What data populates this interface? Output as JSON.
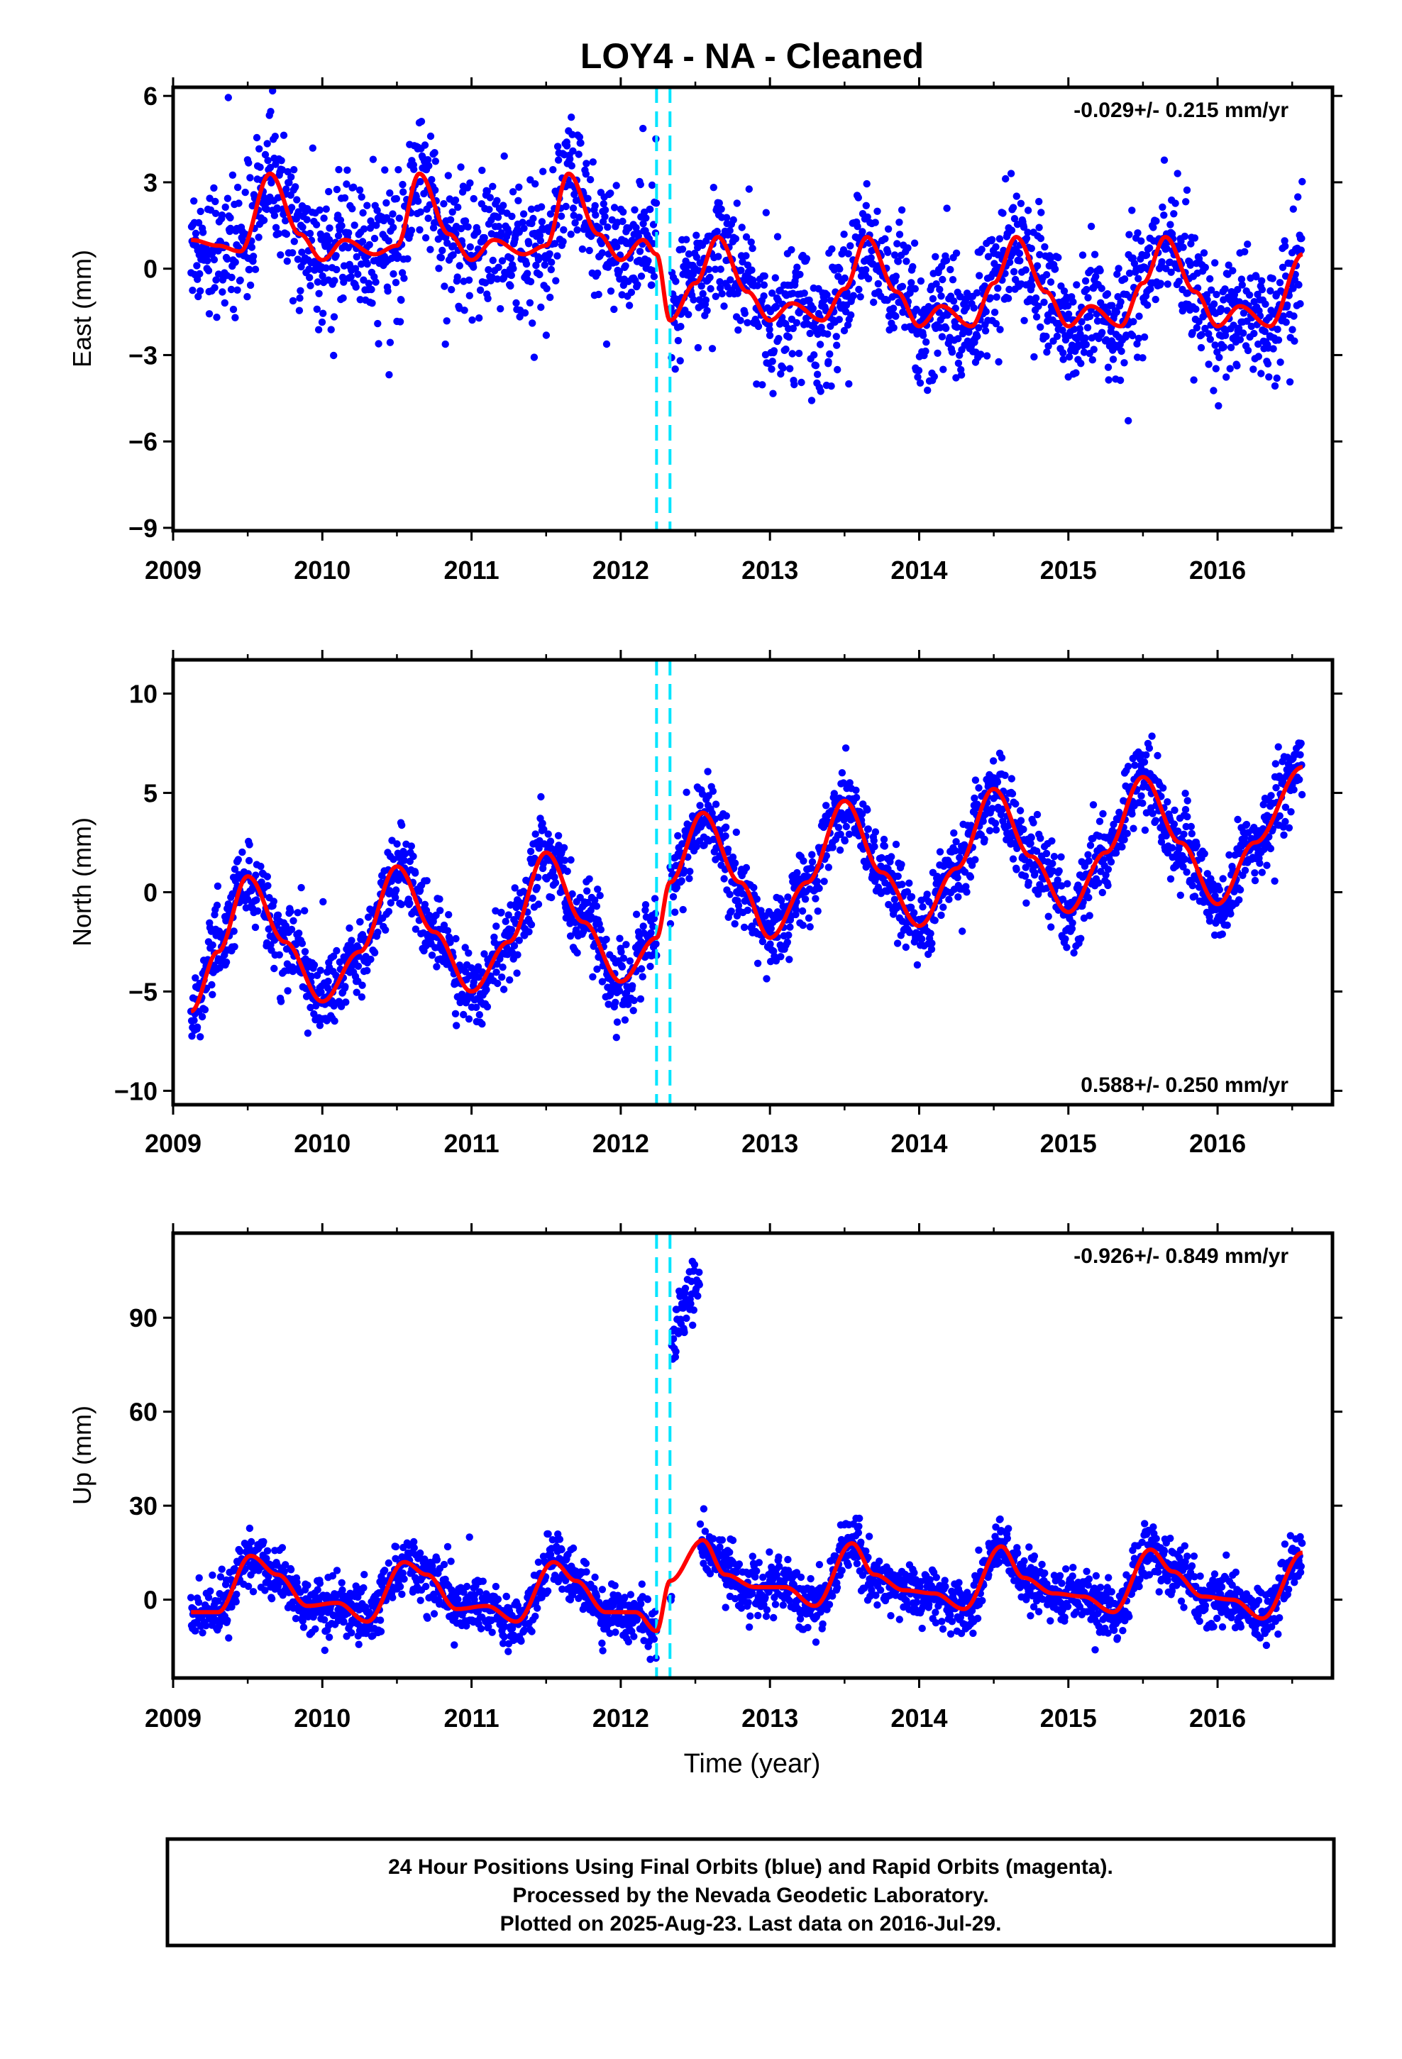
{
  "title": "LOY4  - NA - Cleaned",
  "xlabel": "Time (year)",
  "footer": {
    "line1": "24 Hour Positions Using Final Orbits (blue) and Rapid Orbits (magenta).",
    "line2": "Processed by the Nevada Geodetic Laboratory.",
    "line3": "Plotted on 2025-Aug-23. Last data on 2016-Jul-29."
  },
  "colors": {
    "points": "#0000ff",
    "model": "#ff0000",
    "offsets": "#00e5ff",
    "frame": "#000000"
  },
  "chart_data": [
    {
      "type": "scatter",
      "ylabel": "East (mm)",
      "rate_label": "-0.029+/- 0.215 mm/yr",
      "rate_position": "top-right",
      "xlim": [
        2009.0,
        2016.77
      ],
      "ylim": [
        -9.1,
        6.3
      ],
      "xticks": [
        2009,
        2010,
        2011,
        2012,
        2013,
        2014,
        2015,
        2016
      ],
      "yticks": [
        -9,
        -6,
        -3,
        0,
        3,
        6
      ],
      "ytick_labels": [
        "−9",
        "−6",
        "−3",
        "0",
        "3",
        "6"
      ],
      "offsets": [
        2012.24,
        2012.33
      ],
      "data_range": [
        2009.12,
        2016.57
      ],
      "series": [
        {
          "kind": "points",
          "mean_by_year": [
            [
              2009.12,
              0.5
            ],
            [
              2009.6,
              2.0
            ],
            [
              2010.0,
              0.6
            ],
            [
              2010.6,
              2.0
            ],
            [
              2011.0,
              0.8
            ],
            [
              2011.6,
              2.2
            ],
            [
              2012.0,
              0.8
            ],
            [
              2012.3,
              -0.3
            ],
            [
              2012.6,
              0.0
            ],
            [
              2013.0,
              -1.2
            ],
            [
              2013.6,
              0.0
            ],
            [
              2014.0,
              -1.5
            ],
            [
              2014.6,
              0.0
            ],
            [
              2015.0,
              -1.6
            ],
            [
              2015.6,
              0.2
            ],
            [
              2016.0,
              -1.8
            ],
            [
              2016.57,
              -0.8
            ]
          ],
          "scatter_std": 1.1
        },
        {
          "kind": "model",
          "x": [
            2009.12,
            2009.3,
            2009.45,
            2009.65,
            2009.85,
            2010.0,
            2010.15,
            2010.35,
            2010.5,
            2010.65,
            2010.85,
            2011.0,
            2011.15,
            2011.35,
            2011.5,
            2011.65,
            2011.85,
            2012.0,
            2012.15,
            2012.24,
            2012.33,
            2012.5,
            2012.65,
            2012.85,
            2013.0,
            2013.15,
            2013.35,
            2013.5,
            2013.65,
            2013.85,
            2014.0,
            2014.15,
            2014.35,
            2014.5,
            2014.65,
            2014.85,
            2015.0,
            2015.15,
            2015.35,
            2015.5,
            2015.65,
            2015.85,
            2016.0,
            2016.15,
            2016.35,
            2016.57
          ],
          "y": [
            1.0,
            0.8,
            0.6,
            3.3,
            1.2,
            0.3,
            1.0,
            0.5,
            0.8,
            3.3,
            1.2,
            0.3,
            1.0,
            0.5,
            0.8,
            3.3,
            1.2,
            0.3,
            1.0,
            0.5,
            -1.8,
            -0.5,
            1.1,
            -0.8,
            -1.8,
            -1.2,
            -1.8,
            -0.7,
            1.1,
            -0.8,
            -2.0,
            -1.3,
            -2.0,
            -0.5,
            1.1,
            -0.8,
            -2.0,
            -1.3,
            -2.0,
            -0.5,
            1.1,
            -0.8,
            -2.0,
            -1.3,
            -2.0,
            0.5
          ]
        }
      ]
    },
    {
      "type": "scatter",
      "ylabel": "North (mm)",
      "rate_label": "0.588+/- 0.250 mm/yr",
      "rate_position": "bottom-right",
      "xlim": [
        2009.0,
        2016.77
      ],
      "ylim": [
        -10.7,
        11.7
      ],
      "xticks": [
        2009,
        2010,
        2011,
        2012,
        2013,
        2014,
        2015,
        2016
      ],
      "yticks": [
        -10,
        -5,
        0,
        5,
        10
      ],
      "ytick_labels": [
        "−10",
        "−5",
        "0",
        "5",
        "10"
      ],
      "offsets": [
        2012.24,
        2012.33
      ],
      "data_range": [
        2009.12,
        2016.57
      ],
      "series": [
        {
          "kind": "points",
          "scatter_std": 1.0
        },
        {
          "kind": "model",
          "x": [
            2009.12,
            2009.3,
            2009.5,
            2009.75,
            2010.0,
            2010.25,
            2010.5,
            2010.75,
            2011.0,
            2011.25,
            2011.5,
            2011.75,
            2012.0,
            2012.24,
            2012.33,
            2012.55,
            2012.8,
            2013.0,
            2013.25,
            2013.5,
            2013.75,
            2014.0,
            2014.25,
            2014.5,
            2014.75,
            2015.0,
            2015.25,
            2015.5,
            2015.75,
            2016.0,
            2016.25,
            2016.57
          ],
          "y": [
            -6.0,
            -3.0,
            0.8,
            -2.5,
            -5.5,
            -3.0,
            1.3,
            -2.0,
            -5.0,
            -2.5,
            2.0,
            -1.5,
            -4.5,
            -2.3,
            0.5,
            4.0,
            0.5,
            -2.3,
            0.5,
            4.6,
            1.0,
            -1.7,
            1.2,
            5.2,
            1.8,
            -1.0,
            2.0,
            5.8,
            2.5,
            -0.6,
            2.5,
            6.3
          ]
        }
      ]
    },
    {
      "type": "scatter",
      "ylabel": "Up (mm)",
      "rate_label": "-0.926+/- 0.849 mm/yr",
      "rate_position": "top-right",
      "xlim": [
        2009.0,
        2016.77
      ],
      "ylim": [
        -25.0,
        117.0
      ],
      "xticks": [
        2009,
        2010,
        2011,
        2012,
        2013,
        2014,
        2015,
        2016
      ],
      "yticks": [
        0,
        30,
        60,
        90
      ],
      "ytick_labels": [
        "0",
        "30",
        "60",
        "90"
      ],
      "offsets": [
        2012.24,
        2012.33
      ],
      "data_range": [
        2009.12,
        2016.57
      ],
      "anomaly": {
        "x_range": [
          2012.34,
          2012.53
        ],
        "y_range": [
          82,
          112
        ]
      },
      "series": [
        {
          "kind": "points",
          "scatter_std": 4.5
        },
        {
          "kind": "model",
          "x": [
            2009.12,
            2009.3,
            2009.52,
            2009.7,
            2009.9,
            2010.1,
            2010.3,
            2010.55,
            2010.7,
            2010.9,
            2011.1,
            2011.3,
            2011.55,
            2011.7,
            2011.9,
            2012.1,
            2012.24,
            2012.33,
            2012.55,
            2012.7,
            2012.9,
            2013.1,
            2013.3,
            2013.55,
            2013.7,
            2013.9,
            2014.1,
            2014.3,
            2014.55,
            2014.7,
            2014.9,
            2015.1,
            2015.3,
            2015.55,
            2015.7,
            2015.9,
            2016.1,
            2016.3,
            2016.57
          ],
          "y": [
            -4,
            -4,
            14,
            8,
            -2,
            -1,
            -7,
            12,
            8,
            -3,
            -2,
            -7,
            12,
            6,
            -4,
            -4,
            -10,
            6,
            19,
            8,
            4,
            4,
            -2,
            18,
            8,
            3,
            2,
            -3,
            17,
            7,
            2,
            1,
            -4,
            16,
            9,
            1,
            0,
            -6,
            15
          ]
        }
      ]
    }
  ]
}
